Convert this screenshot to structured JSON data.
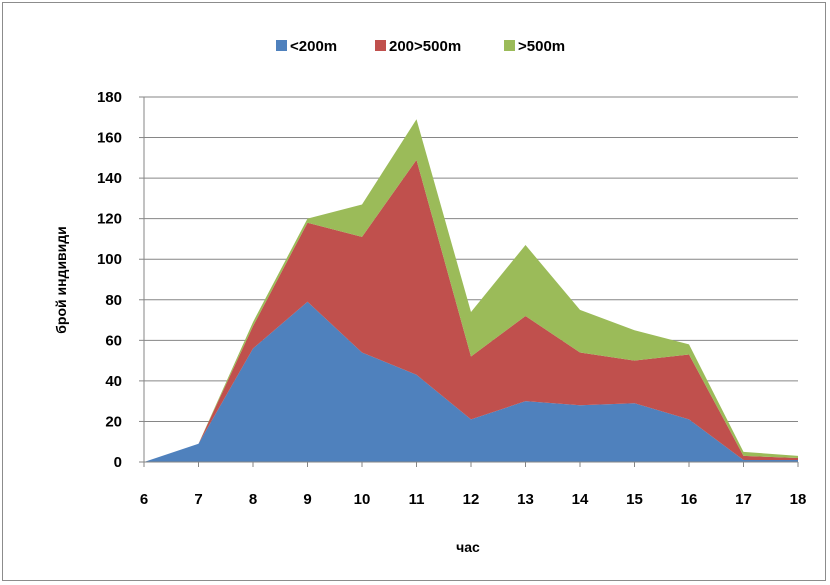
{
  "chart_data": {
    "type": "area",
    "stacked": true,
    "title": "",
    "xlabel": "час",
    "ylabel": "брой индивиди",
    "ylim": [
      0,
      180
    ],
    "ytick_step": 20,
    "grid": true,
    "legend_position": "top",
    "x": [
      6,
      7,
      8,
      9,
      10,
      11,
      12,
      13,
      14,
      15,
      16,
      17,
      18
    ],
    "series": [
      {
        "name": "<200m",
        "color": "#4f81bd",
        "values": [
          0,
          9,
          56,
          79,
          54,
          43,
          21,
          30,
          28,
          29,
          21,
          1,
          1
        ]
      },
      {
        "name": "200>500m",
        "color": "#c0504d",
        "values": [
          0,
          0,
          11,
          39,
          57,
          106,
          31,
          42,
          26,
          21,
          32,
          2,
          1
        ]
      },
      {
        "name": ">500m",
        "color": "#9bbb59",
        "values": [
          0,
          0,
          2,
          2,
          16,
          20,
          22,
          35,
          21,
          15,
          5,
          2,
          1
        ]
      }
    ]
  }
}
